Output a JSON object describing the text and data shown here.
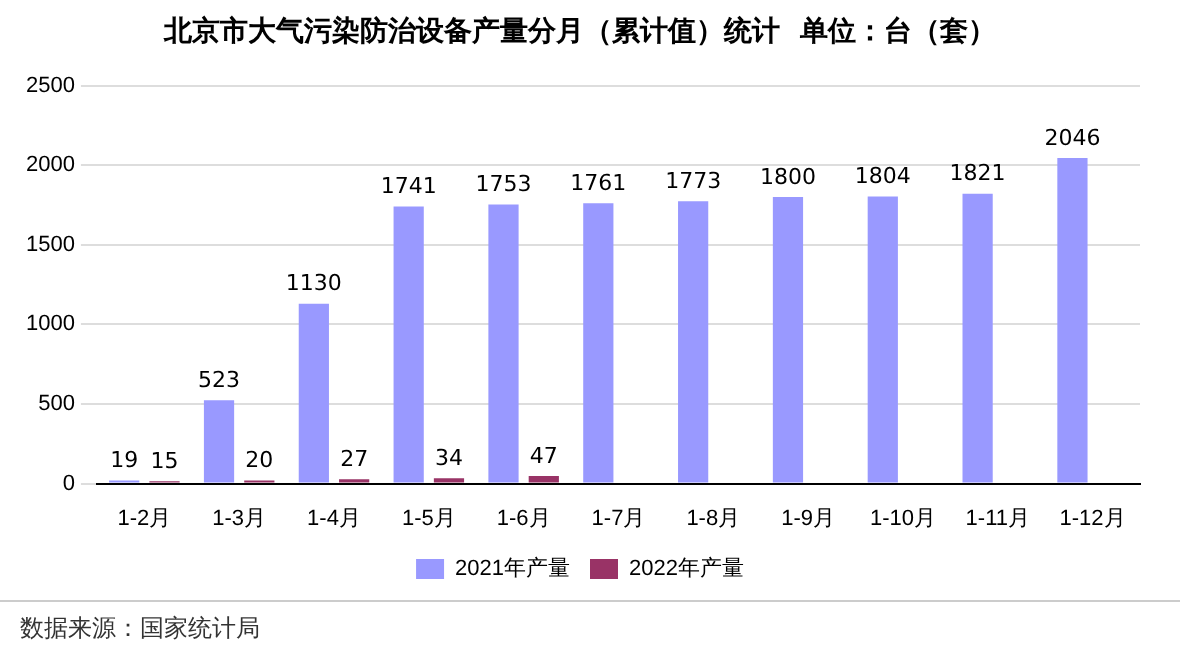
{
  "chart_data": {
    "type": "bar",
    "title": "北京市大气污染防治设备产量分月（累计值）统计  单位：台（套）",
    "categories": [
      "1-2月",
      "1-3月",
      "1-4月",
      "1-5月",
      "1-6月",
      "1-7月",
      "1-8月",
      "1-9月",
      "1-10月",
      "1-11月",
      "1-12月"
    ],
    "series": [
      {
        "name": "2021年产量",
        "color": "#9999ff",
        "values": [
          19,
          523,
          1130,
          1741,
          1753,
          1761,
          1773,
          1800,
          1804,
          1821,
          2046
        ]
      },
      {
        "name": "2022年产量",
        "color": "#993366",
        "values": [
          15,
          20,
          27,
          34,
          47,
          null,
          null,
          null,
          null,
          null,
          null
        ]
      }
    ],
    "ylim": [
      0,
      2500
    ],
    "yticks": [
      0,
      500,
      1000,
      1500,
      2000,
      2500
    ],
    "grid": "y",
    "legend": "bottom",
    "data_labels": true,
    "annotations": [
      "数据来源：国家统计局"
    ]
  }
}
